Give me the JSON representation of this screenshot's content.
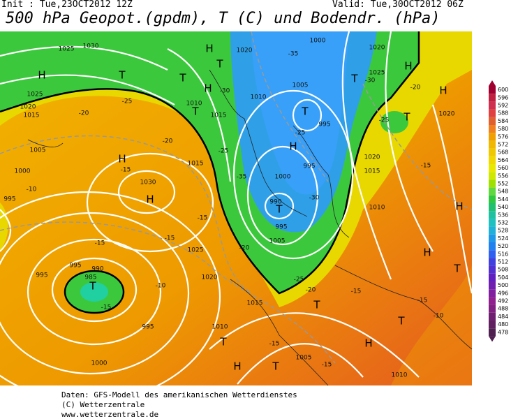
{
  "header": {
    "init": "Init : Tue,23OCT2012 12Z",
    "valid": "Valid: Tue,30OCT2012 06Z",
    "title": "500 hPa Geopot.(gpdm), T (C) und Bodendr. (hPa)"
  },
  "colorbar": {
    "labels": [
      "600",
      "596",
      "592",
      "588",
      "584",
      "580",
      "576",
      "572",
      "568",
      "564",
      "560",
      "556",
      "552",
      "548",
      "544",
      "540",
      "536",
      "532",
      "528",
      "524",
      "520",
      "516",
      "512",
      "508",
      "504",
      "500",
      "496",
      "492",
      "488",
      "484",
      "480",
      "478"
    ]
  },
  "map_labels": [
    "H",
    "H",
    "H",
    "T",
    "T",
    "T",
    "T",
    "H",
    "H",
    "T",
    "H",
    "T",
    "T",
    "T",
    "H",
    "H",
    "H",
    "T",
    "T",
    "H",
    "T",
    "T",
    "H",
    "T",
    "H",
    "T",
    "1025",
    "1030",
    "1025",
    "1020",
    "1015",
    "1010",
    "1015",
    "1020",
    "1010",
    "1005",
    "1000",
    "995",
    "995",
    "1000",
    "990",
    "995",
    "1005",
    "1030",
    "1025",
    "1020",
    "1015",
    "1010",
    "1005",
    "1010",
    "1000",
    "995",
    "995",
    "985",
    "990",
    "995",
    "1000",
    "995",
    "1005",
    "1020",
    "1015",
    "1010",
    "1020",
    "1025",
    "1020",
    "1015",
    "-25",
    "-20",
    "-15",
    "-15",
    "-10",
    "-15",
    "-15",
    "-10",
    "-15",
    "-20",
    "-25",
    "-30",
    "-35",
    "-35",
    "-25",
    "-30",
    "-25",
    "-20",
    "-15",
    "-15",
    "-15",
    "-15",
    "-10",
    "-15",
    "-20",
    "-25",
    "-30",
    "-20"
  ],
  "footer": {
    "line1": "Daten: GFS-Modell des amerikanischen Wetterdienstes",
    "line2": "(C) Wetterzentrale",
    "line3": "www.wetterzentrale.de"
  }
}
